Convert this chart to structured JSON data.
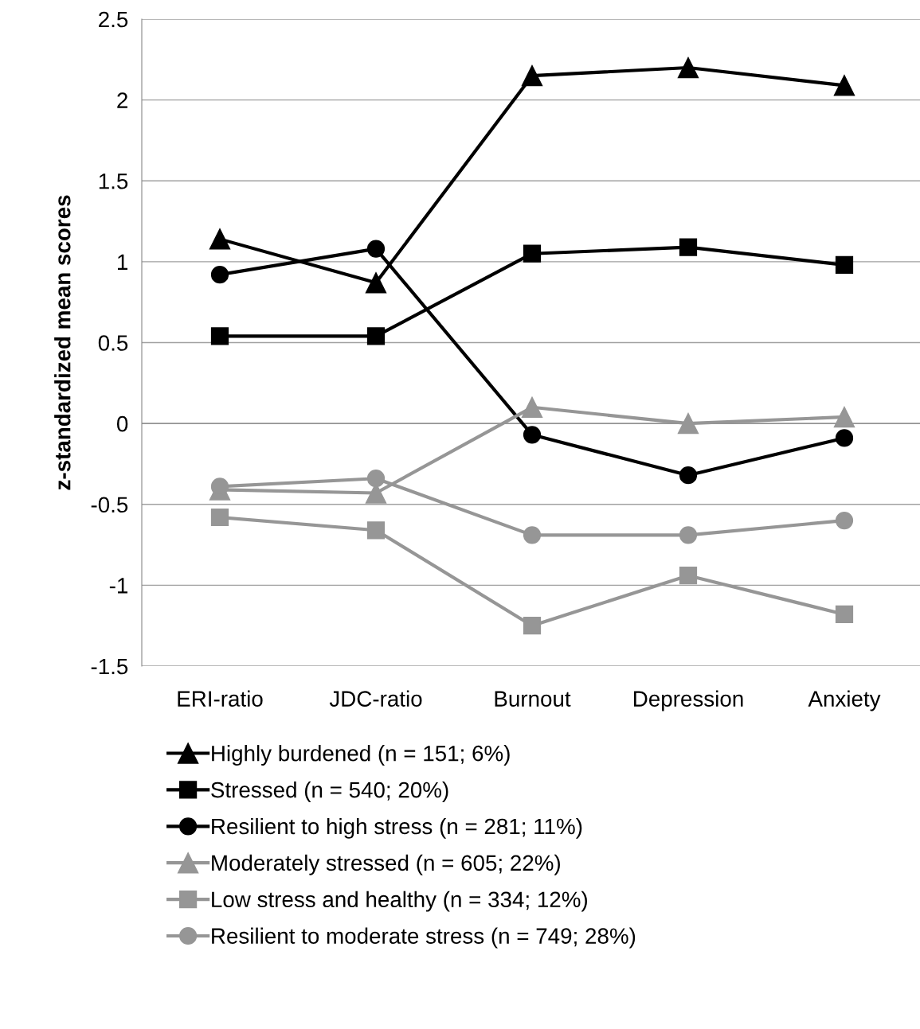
{
  "chart_data": {
    "type": "line",
    "ylabel": "z-standardized mean scores",
    "categories": [
      "ERI-ratio",
      "JDC-ratio",
      "Burnout",
      "Depression",
      "Anxiety"
    ],
    "series": [
      {
        "name": "Highly burdened (n = 151; 6%)",
        "color": "#000000",
        "marker": "triangle",
        "values": [
          1.14,
          0.87,
          2.15,
          2.2,
          2.09
        ]
      },
      {
        "name": "Stressed (n = 540; 20%)",
        "color": "#000000",
        "marker": "square",
        "values": [
          0.54,
          0.54,
          1.05,
          1.09,
          0.98
        ]
      },
      {
        "name": "Resilient to high stress (n = 281; 11%)",
        "color": "#000000",
        "marker": "circle",
        "values": [
          0.92,
          1.08,
          -0.07,
          -0.32,
          -0.09
        ]
      },
      {
        "name": "Moderately stressed (n = 605; 22%)",
        "color": "#969696",
        "marker": "triangle",
        "values": [
          -0.41,
          -0.43,
          0.1,
          0.0,
          0.04
        ]
      },
      {
        "name": "Low stress and healthy (n = 334; 12%)",
        "color": "#969696",
        "marker": "square",
        "values": [
          -0.58,
          -0.66,
          -1.25,
          -0.94,
          -1.18
        ]
      },
      {
        "name": "Resilient to moderate stress (n = 749; 28%)",
        "color": "#969696",
        "marker": "circle",
        "values": [
          -0.39,
          -0.34,
          -0.69,
          -0.69,
          -0.6
        ]
      }
    ],
    "ylim": [
      -1.5,
      2.5
    ],
    "yticks": [
      -1.5,
      -1,
      -0.5,
      0,
      0.5,
      1,
      1.5,
      2,
      2.5
    ],
    "grid": "y",
    "legend": "bottom",
    "line_style": "solid"
  }
}
